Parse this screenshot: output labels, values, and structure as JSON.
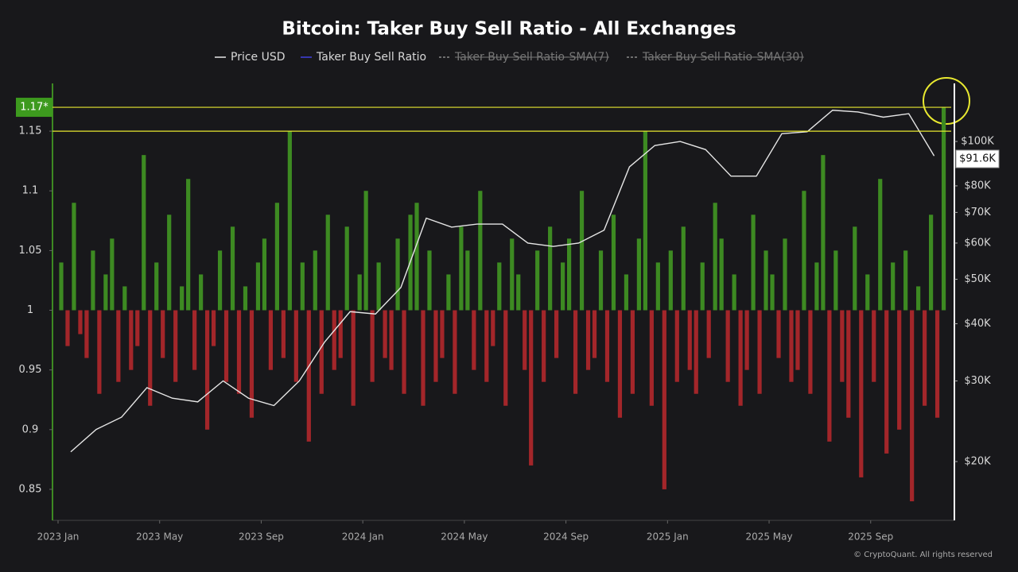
{
  "chart_data": {
    "type": "bar",
    "title": "Bitcoin: Taker Buy Sell Ratio - All Exchanges",
    "credit": "© CryptoQuant. All rights reserved",
    "ylim": [
      0.824,
      1.19
    ],
    "yticks": [
      0.85,
      0.9,
      0.95,
      1,
      1.05,
      1.1,
      1.15
    ],
    "y2lim": [
      14880,
      133900
    ],
    "y2log": true,
    "y2ticks": [
      {
        "value": 20000,
        "label": "$20K"
      },
      {
        "value": 30000,
        "label": "$30K"
      },
      {
        "value": 40000,
        "label": "$40K"
      },
      {
        "value": 50000,
        "label": "$50K"
      },
      {
        "value": 60000,
        "label": "$60K"
      },
      {
        "value": 70000,
        "label": "$70K"
      },
      {
        "value": 80000,
        "label": "$80K"
      },
      {
        "value": 100000,
        "label": "$100K"
      }
    ],
    "xticks": [
      {
        "value": "2023-01",
        "label": "2023 Jan"
      },
      {
        "value": "2023-05",
        "label": "2023 May"
      },
      {
        "value": "2023-09",
        "label": "2023 Sep"
      },
      {
        "value": "2024-01",
        "label": "2024 Jan"
      },
      {
        "value": "2024-05",
        "label": "2024 May"
      },
      {
        "value": "2024-09",
        "label": "2024 Sep"
      },
      {
        "value": "2025-01",
        "label": "2025 Jan"
      },
      {
        "value": "2025-05",
        "label": "2025 May"
      },
      {
        "value": "2025-09",
        "label": "2025 Sep"
      }
    ],
    "baseline": 1,
    "up_color": "#3d8a22",
    "down_color": "#a3262a",
    "hlines": [
      {
        "value": 1.17,
        "label": "1.17*",
        "color": "#e8e830"
      },
      {
        "value": 1.15,
        "color": "#e8e830"
      }
    ],
    "last_price": {
      "value": 91600,
      "label": "$91.6K"
    },
    "series": [
      {
        "name": "Price USD",
        "color": "#e6e6e6",
        "axis": "y2",
        "x": [
          "2023-01",
          "2023-02",
          "2023-03",
          "2023-04",
          "2023-05",
          "2023-06",
          "2023-07",
          "2023-08",
          "2023-09",
          "2023-10",
          "2023-11",
          "2023-12",
          "2024-01",
          "2024-02",
          "2024-03",
          "2024-04",
          "2024-05",
          "2024-06",
          "2024-07",
          "2024-08",
          "2024-09",
          "2024-10",
          "2024-11",
          "2024-12",
          "2025-01",
          "2025-02",
          "2025-03",
          "2025-04",
          "2025-05",
          "2025-06",
          "2025-07",
          "2025-08",
          "2025-09",
          "2025-10",
          "2025-11"
        ],
        "values": [
          21000,
          23500,
          25000,
          29000,
          27500,
          27000,
          30000,
          27500,
          26500,
          30000,
          36500,
          42500,
          42000,
          48000,
          68000,
          65000,
          66000,
          66000,
          60000,
          59000,
          60000,
          64000,
          88000,
          98000,
          100000,
          96000,
          84000,
          84000,
          104000,
          105000,
          117000,
          116000,
          113000,
          115000,
          93000
        ]
      },
      {
        "name": "Taker Buy Sell Ratio",
        "color": "#4040e0",
        "x": [
          "2023-01",
          "2023-01",
          "2023-01",
          "2023-01",
          "2023-02",
          "2023-02",
          "2023-02",
          "2023-02",
          "2023-03",
          "2023-03",
          "2023-03",
          "2023-03",
          "2023-04",
          "2023-04",
          "2023-04",
          "2023-04",
          "2023-05",
          "2023-05",
          "2023-05",
          "2023-05",
          "2023-06",
          "2023-06",
          "2023-06",
          "2023-06",
          "2023-07",
          "2023-07",
          "2023-07",
          "2023-07",
          "2023-08",
          "2023-08",
          "2023-08",
          "2023-08",
          "2023-09",
          "2023-09",
          "2023-09",
          "2023-09",
          "2023-10",
          "2023-10",
          "2023-10",
          "2023-10",
          "2023-11",
          "2023-11",
          "2023-11",
          "2023-11",
          "2023-12",
          "2023-12",
          "2023-12",
          "2023-12",
          "2024-01",
          "2024-01",
          "2024-01",
          "2024-01",
          "2024-02",
          "2024-02",
          "2024-02",
          "2024-02",
          "2024-03",
          "2024-03",
          "2024-03",
          "2024-03",
          "2024-04",
          "2024-04",
          "2024-04",
          "2024-04",
          "2024-05",
          "2024-05",
          "2024-05",
          "2024-05",
          "2024-06",
          "2024-06",
          "2024-06",
          "2024-06",
          "2024-07",
          "2024-07",
          "2024-07",
          "2024-07",
          "2024-08",
          "2024-08",
          "2024-08",
          "2024-08",
          "2024-09",
          "2024-09",
          "2024-09",
          "2024-09",
          "2024-10",
          "2024-10",
          "2024-10",
          "2024-10",
          "2024-11",
          "2024-11",
          "2024-11",
          "2024-11",
          "2024-12",
          "2024-12",
          "2024-12",
          "2024-12",
          "2025-01",
          "2025-01",
          "2025-01",
          "2025-01",
          "2025-02",
          "2025-02",
          "2025-02",
          "2025-02",
          "2025-03",
          "2025-03",
          "2025-03",
          "2025-03",
          "2025-04",
          "2025-04",
          "2025-04",
          "2025-04",
          "2025-05",
          "2025-05",
          "2025-05",
          "2025-05",
          "2025-06",
          "2025-06",
          "2025-06",
          "2025-06",
          "2025-07",
          "2025-07",
          "2025-07",
          "2025-07",
          "2025-08",
          "2025-08",
          "2025-08",
          "2025-08",
          "2025-09",
          "2025-09",
          "2025-09",
          "2025-09",
          "2025-10",
          "2025-10",
          "2025-10",
          "2025-10",
          "2025-11",
          "2025-11",
          "2025-11",
          "2025-11"
        ],
        "values": [
          1.04,
          0.97,
          1.09,
          0.98,
          0.96,
          1.05,
          0.93,
          1.03,
          1.06,
          0.94,
          1.02,
          0.95,
          0.97,
          1.13,
          0.92,
          1.04,
          0.96,
          1.08,
          0.94,
          1.02,
          1.11,
          0.95,
          1.03,
          0.9,
          0.97,
          1.05,
          0.94,
          1.07,
          0.93,
          1.02,
          0.91,
          1.04,
          1.06,
          0.95,
          1.09,
          0.96,
          1.15,
          0.94,
          1.04,
          0.89,
          1.05,
          0.93,
          1.08,
          0.95,
          0.96,
          1.07,
          0.92,
          1.03,
          1.1,
          0.94,
          1.04,
          0.96,
          0.95,
          1.06,
          0.93,
          1.08,
          1.09,
          0.92,
          1.05,
          0.94,
          0.96,
          1.03,
          0.93,
          1.07,
          1.05,
          0.95,
          1.1,
          0.94,
          0.97,
          1.04,
          0.92,
          1.06,
          1.03,
          0.95,
          0.87,
          1.05,
          0.94,
          1.07,
          0.96,
          1.04,
          1.06,
          0.93,
          1.1,
          0.95,
          0.96,
          1.05,
          0.94,
          1.08,
          0.91,
          1.03,
          0.93,
          1.06,
          1.15,
          0.92,
          1.04,
          0.85,
          1.05,
          0.94,
          1.07,
          0.95,
          0.93,
          1.04,
          0.96,
          1.09,
          1.06,
          0.94,
          1.03,
          0.92,
          0.95,
          1.08,
          0.93,
          1.05,
          1.03,
          0.96,
          1.06,
          0.94,
          0.95,
          1.1,
          0.93,
          1.04,
          1.13,
          0.89,
          1.05,
          0.94,
          0.91,
          1.07,
          0.86,
          1.03,
          0.94,
          1.11,
          0.88,
          1.04,
          0.9,
          1.05,
          0.84,
          1.02,
          0.92,
          1.08,
          0.91,
          1.17
        ]
      },
      {
        "name": "Taker Buy Sell Ratio-SMA(7)",
        "color": "#8a8a8a",
        "hidden": true
      },
      {
        "name": "Taker Buy Sell Ratio-SMA(30)",
        "color": "#8a8a8a",
        "hidden": true
      }
    ]
  }
}
